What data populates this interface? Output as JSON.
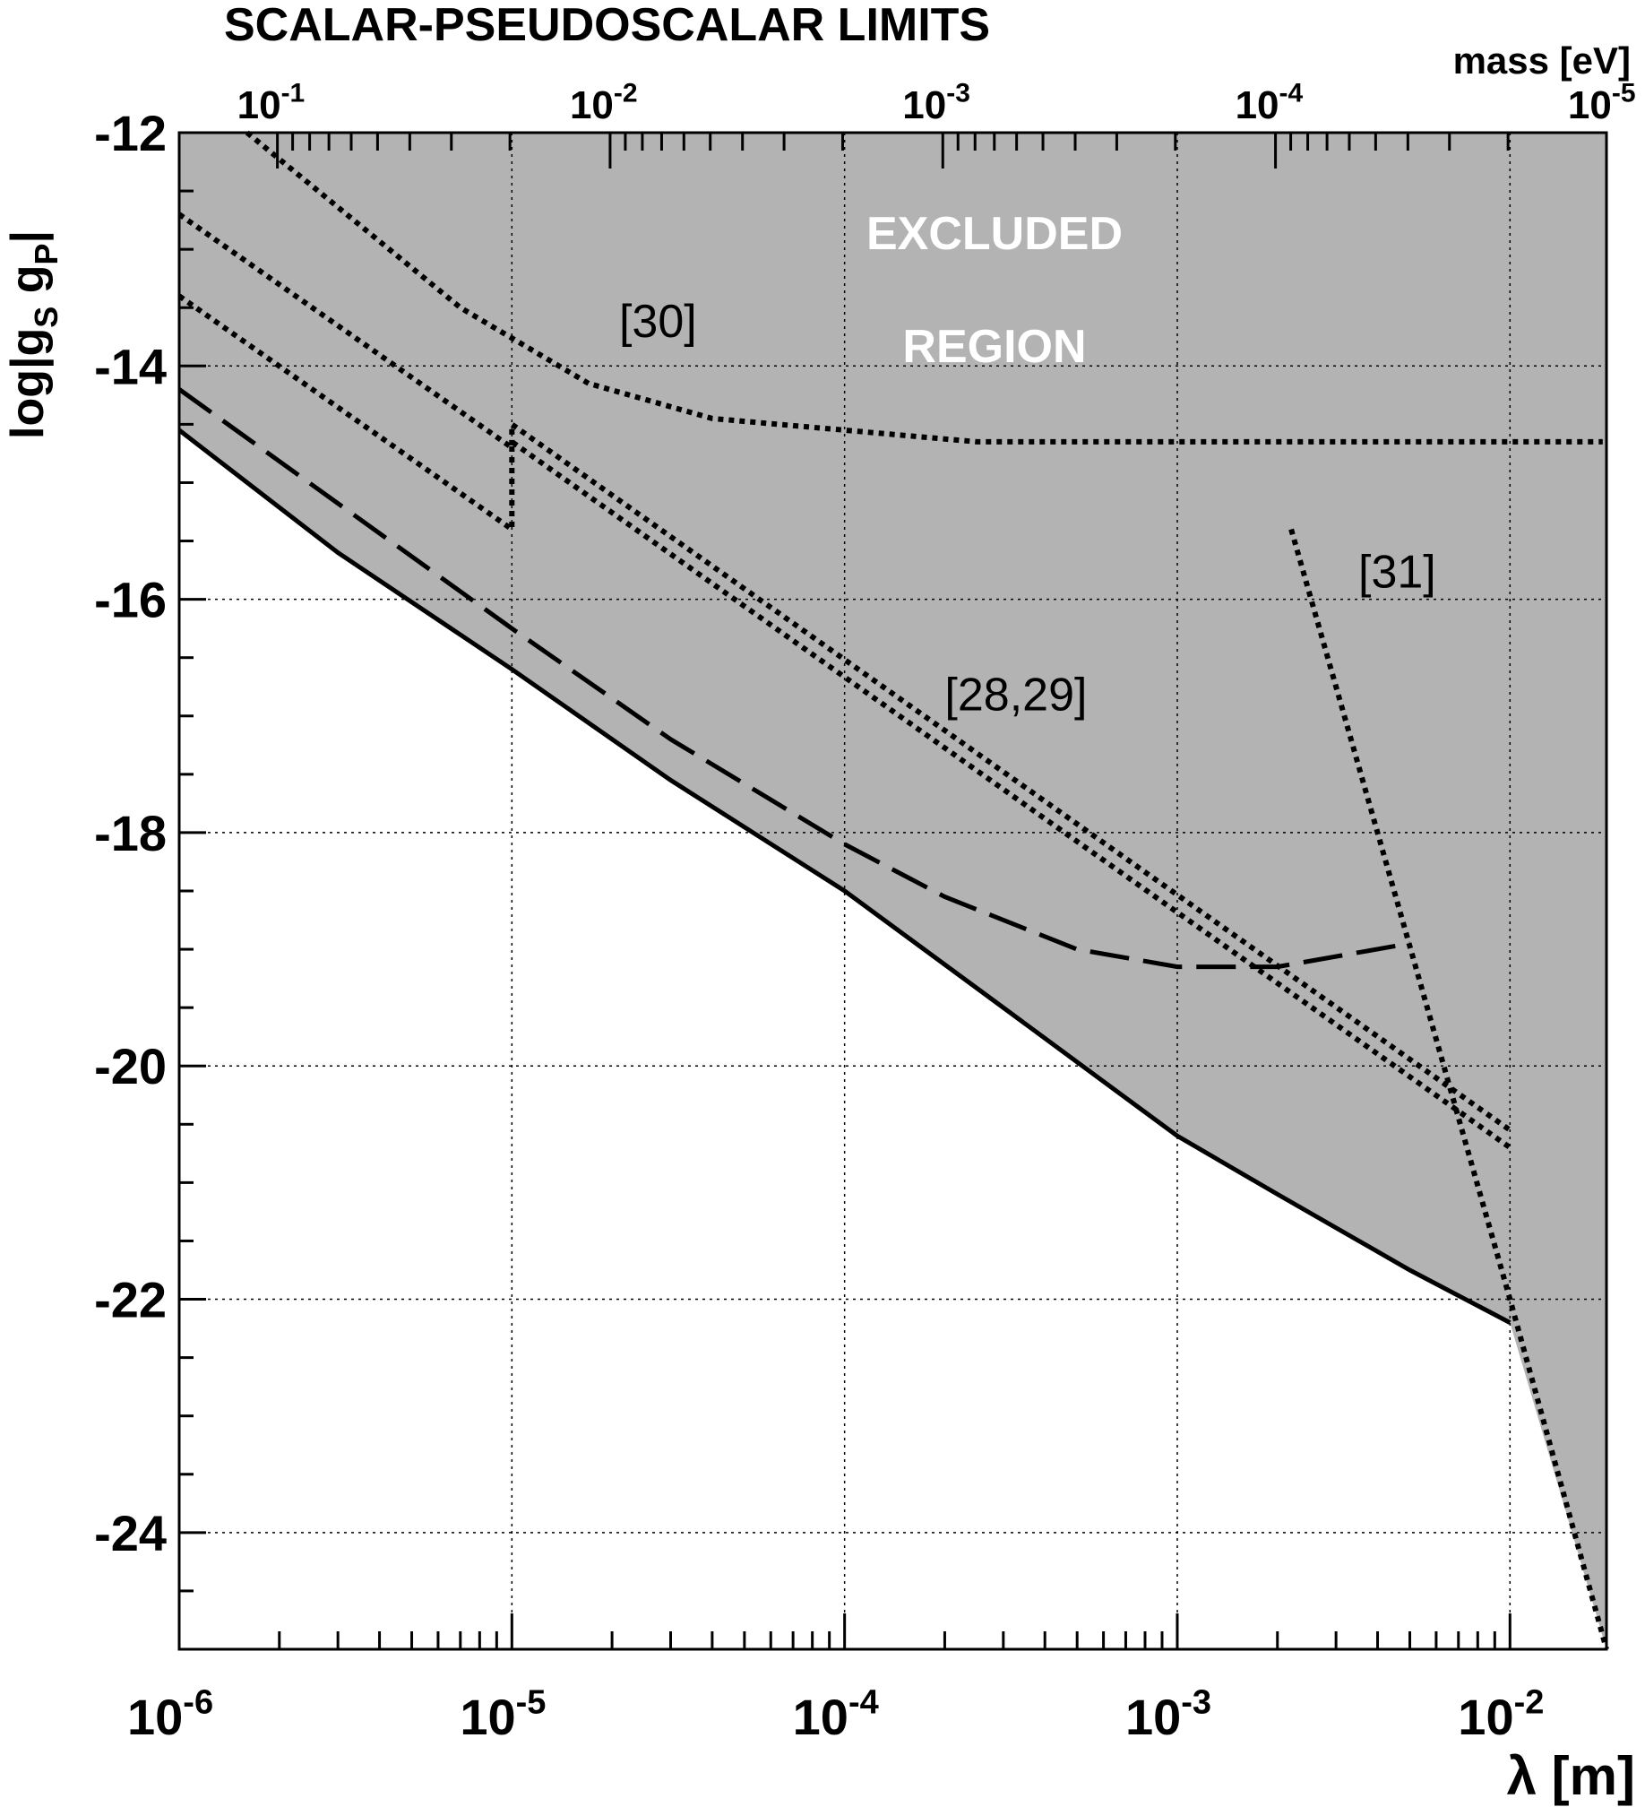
{
  "chart_data": {
    "type": "line",
    "title": "SCALAR-PSEUDOSCALAR LIMITS",
    "xlabel": "λ  [m]",
    "ylabel": "log|g_S g_P|",
    "ylabel_parts": {
      "main": "log|g",
      "sub1": "S",
      "mid": " g",
      "sub2": "P",
      "end": "|"
    },
    "x_axis": {
      "scale": "log",
      "range": [
        1e-06,
        0.0195
      ],
      "ticks": [
        {
          "value": 1e-06,
          "base": "10",
          "exp": "-6"
        },
        {
          "value": 1e-05,
          "base": "10",
          "exp": "-5"
        },
        {
          "value": 0.0001,
          "base": "10",
          "exp": "-4"
        },
        {
          "value": 0.001,
          "base": "10",
          "exp": "-3"
        },
        {
          "value": 0.01,
          "base": "10",
          "exp": "-2"
        }
      ]
    },
    "top_axis": {
      "label": "mass [eV]",
      "scale": "log",
      "ticks": [
        {
          "value": 0.1,
          "base": "10",
          "exp": "-1"
        },
        {
          "value": 0.01,
          "base": "10",
          "exp": "-2"
        },
        {
          "value": 0.001,
          "base": "10",
          "exp": "-3"
        },
        {
          "value": 0.0001,
          "base": "10",
          "exp": "-4"
        },
        {
          "value": 1e-05,
          "base": "10",
          "exp": "-5"
        }
      ]
    },
    "y_axis": {
      "scale": "linear",
      "range": [
        -25,
        -12
      ],
      "ticks": [
        -12,
        -14,
        -16,
        -18,
        -20,
        -22,
        -24
      ],
      "tick_labels": [
        "-12",
        "-14",
        "-16",
        "-18",
        "-20",
        "-22",
        "-24"
      ]
    },
    "grid": true,
    "excluded_region": {
      "label_line1": "EXCLUDED",
      "label_line2": "REGION",
      "fill": "#b3b3b3"
    },
    "series": [
      {
        "style": "solid",
        "x": [
          1e-06,
          3e-06,
          1e-05,
          3e-05,
          0.0001,
          0.0003,
          0.001,
          0.002,
          0.005,
          0.01
        ],
        "y": [
          -14.55,
          -15.6,
          -16.6,
          -17.55,
          -18.5,
          -19.5,
          -20.6,
          -21.1,
          -21.75,
          -22.2
        ]
      },
      {
        "style": "dashed",
        "x": [
          1e-06,
          1e-05,
          3e-05,
          0.0001,
          0.0002,
          0.0005,
          0.001,
          0.002,
          0.005
        ],
        "y": [
          -14.2,
          -16.25,
          -17.2,
          -18.1,
          -18.55,
          -19.0,
          -19.15,
          -19.15,
          -18.95
        ]
      },
      {
        "style": "dotted",
        "name": "[30]",
        "x": [
          1.6e-06,
          7e-06,
          1.7e-05,
          4e-05,
          0.00025,
          0.019
        ],
        "y": [
          -12.0,
          -13.5,
          -14.15,
          -14.45,
          -14.65,
          -14.65
        ]
      },
      {
        "style": "dotted",
        "name": "[28,29]",
        "x": [
          1e-06,
          1e-05,
          1e-05,
          0.01
        ],
        "y": [
          -12.7,
          -14.7,
          -14.5,
          -20.55
        ]
      },
      {
        "style": "dotted",
        "name": "[28,29]",
        "x": [
          1e-06,
          1e-05,
          1e-05,
          0.01
        ],
        "y": [
          -13.4,
          -15.4,
          -14.65,
          -20.7
        ]
      },
      {
        "style": "dotted",
        "name": "[31]",
        "x": [
          0.0022,
          0.004,
          0.01,
          0.0195
        ],
        "y": [
          -15.4,
          -18.0,
          -22.0,
          -25.0
        ]
      }
    ],
    "annotations": [
      {
        "text": "[30]",
        "x": 2.1e-05,
        "y": -13.75
      },
      {
        "text": "[28,29]",
        "x": 0.0002,
        "y": -16.95
      },
      {
        "text": "[31]",
        "x": 0.0035,
        "y": -15.9
      }
    ]
  }
}
